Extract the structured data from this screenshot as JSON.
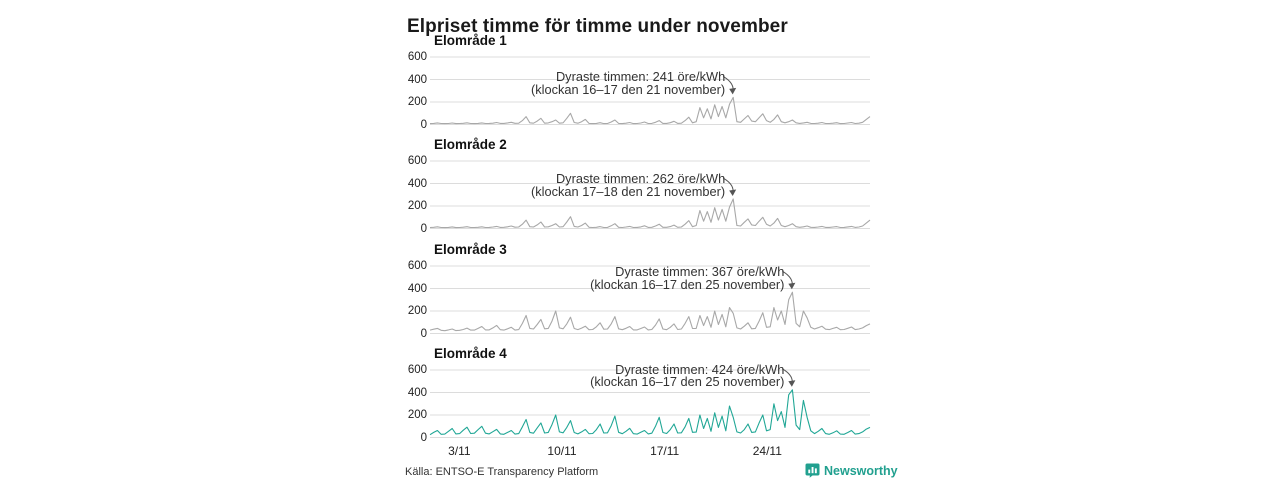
{
  "title": "Elpriset timme för timme under november",
  "source_note": "Källa: ENTSO-E Transparency Platform",
  "brand": {
    "name": "Newsworthy",
    "logo_icon": "bar-chart-bubble-icon",
    "color": "#21a08f"
  },
  "colors": {
    "background": "#ffffff",
    "title_text": "#1a1a1a",
    "grid": "#dcdcdc",
    "axis_text": "#222222",
    "annotation_text": "#333333",
    "arrow": "#555555",
    "line_gray": "#a8a8a8",
    "line_teal": "#21a796"
  },
  "chart_data": {
    "type": "line",
    "title": "Elpriset timme för timme under november",
    "unit": "öre/kWh",
    "x_axis": {
      "tick_labels": [
        "3/11",
        "10/11",
        "17/11",
        "24/11"
      ],
      "tick_days": [
        3,
        10,
        17,
        24
      ],
      "range_days": [
        1,
        31
      ],
      "grid": false
    },
    "y_axis": {
      "tick_labels": [
        "0",
        "200",
        "400",
        "600"
      ],
      "ticks": [
        0,
        200,
        400,
        600
      ],
      "range": [
        0,
        600
      ],
      "grid": true
    },
    "points_per_day": 4,
    "legend_position": "none",
    "panels": [
      {
        "label": "Elområde 1",
        "color": "#a8a8a8",
        "annotation": {
          "line1": "Dyraste timmen: 241 öre/kWh",
          "line2": "(klockan 16–17 den 21 november)",
          "peak_value": 241,
          "peak_date": "21 november",
          "peak_hours": "16–17"
        },
        "values": [
          8,
          10,
          14,
          9,
          8,
          9,
          13,
          8,
          9,
          11,
          15,
          9,
          8,
          10,
          14,
          9,
          10,
          12,
          18,
          10,
          10,
          14,
          20,
          11,
          12,
          35,
          70,
          15,
          12,
          30,
          55,
          12,
          14,
          25,
          40,
          12,
          15,
          55,
          100,
          18,
          12,
          25,
          45,
          10,
          8,
          10,
          16,
          8,
          9,
          22,
          40,
          10,
          8,
          12,
          18,
          8,
          9,
          13,
          22,
          9,
          10,
          20,
          35,
          10,
          10,
          16,
          28,
          10,
          12,
          35,
          65,
          15,
          25,
          150,
          60,
          140,
          50,
          175,
          70,
          160,
          60,
          180,
          241,
          25,
          20,
          50,
          80,
          30,
          25,
          60,
          95,
          35,
          20,
          45,
          85,
          25,
          15,
          25,
          40,
          15,
          10,
          14,
          20,
          10,
          9,
          12,
          18,
          9,
          9,
          12,
          16,
          8,
          9,
          13,
          18,
          9,
          12,
          20,
          45,
          70
        ]
      },
      {
        "label": "Elområde 2",
        "color": "#a8a8a8",
        "annotation": {
          "line1": "Dyraste timmen: 262 öre/kWh",
          "line2": "(klockan 17–18 den 21 november)",
          "peak_value": 262,
          "peak_date": "21 november",
          "peak_hours": "17–18"
        },
        "values": [
          9,
          11,
          15,
          9,
          8,
          10,
          14,
          8,
          9,
          12,
          16,
          9,
          9,
          11,
          15,
          9,
          10,
          13,
          19,
          10,
          11,
          15,
          22,
          12,
          13,
          38,
          75,
          16,
          13,
          32,
          58,
          13,
          15,
          27,
          43,
          13,
          16,
          58,
          105,
          19,
          13,
          27,
          48,
          11,
          9,
          11,
          17,
          9,
          10,
          24,
          43,
          11,
          9,
          13,
          19,
          9,
          10,
          14,
          24,
          10,
          11,
          22,
          38,
          11,
          11,
          17,
          30,
          11,
          13,
          38,
          70,
          16,
          27,
          160,
          65,
          150,
          55,
          185,
          75,
          170,
          65,
          190,
          262,
          27,
          22,
          55,
          85,
          32,
          27,
          65,
          100,
          38,
          22,
          48,
          90,
          27,
          16,
          27,
          43,
          16,
          11,
          15,
          22,
          11,
          10,
          13,
          19,
          10,
          10,
          13,
          17,
          9,
          10,
          14,
          19,
          10,
          13,
          22,
          48,
          75
        ]
      },
      {
        "label": "Elområde 3",
        "color": "#a8a8a8",
        "annotation": {
          "line1": "Dyraste timmen: 367 öre/kWh",
          "line2": "(klockan 16–17 den 25 november)",
          "peak_value": 367,
          "peak_date": "25 november",
          "peak_hours": "16–17"
        },
        "values": [
          30,
          38,
          45,
          28,
          25,
          32,
          40,
          26,
          28,
          36,
          48,
          30,
          30,
          45,
          62,
          32,
          32,
          50,
          72,
          34,
          30,
          42,
          55,
          30,
          35,
          90,
          160,
          45,
          40,
          80,
          125,
          42,
          45,
          110,
          200,
          50,
          42,
          85,
          145,
          44,
          35,
          48,
          65,
          34,
          36,
          60,
          95,
          38,
          40,
          85,
          150,
          42,
          34,
          46,
          62,
          32,
          32,
          44,
          58,
          32,
          36,
          75,
          130,
          40,
          34,
          55,
          85,
          36,
          40,
          90,
          150,
          44,
          45,
          160,
          70,
          150,
          55,
          200,
          80,
          170,
          60,
          230,
          180,
          50,
          40,
          65,
          95,
          42,
          45,
          110,
          185,
          55,
          60,
          230,
          120,
          200,
          80,
          300,
          367,
          90,
          60,
          200,
          140,
          55,
          40,
          52,
          65,
          38,
          35,
          45,
          55,
          34,
          36,
          46,
          58,
          35,
          40,
          50,
          70,
          85
        ]
      },
      {
        "label": "Elområde 4",
        "color": "#21a796",
        "annotation": {
          "line1": "Dyraste timmen: 424 öre/kWh",
          "line2": "(klockan 16–17 den 25 november)",
          "peak_value": 424,
          "peak_date": "25 november",
          "peak_hours": "16–17"
        },
        "values": [
          25,
          45,
          62,
          28,
          30,
          55,
          80,
          32,
          35,
          65,
          92,
          36,
          38,
          70,
          100,
          38,
          32,
          52,
          72,
          32,
          28,
          45,
          62,
          30,
          35,
          95,
          160,
          45,
          38,
          85,
          130,
          40,
          45,
          115,
          200,
          50,
          42,
          90,
          150,
          44,
          32,
          50,
          72,
          34,
          36,
          70,
          120,
          40,
          42,
          105,
          190,
          46,
          34,
          55,
          82,
          34,
          30,
          46,
          62,
          32,
          38,
          100,
          180,
          44,
          36,
          70,
          120,
          40,
          42,
          95,
          170,
          46,
          48,
          200,
          80,
          170,
          55,
          220,
          90,
          190,
          60,
          280,
          180,
          50,
          40,
          70,
          120,
          45,
          50,
          130,
          200,
          60,
          70,
          300,
          150,
          230,
          90,
          380,
          424,
          110,
          70,
          330,
          180,
          60,
          35,
          55,
          80,
          35,
          28,
          42,
          60,
          30,
          28,
          44,
          62,
          30,
          35,
          50,
          75,
          90
        ]
      }
    ]
  }
}
